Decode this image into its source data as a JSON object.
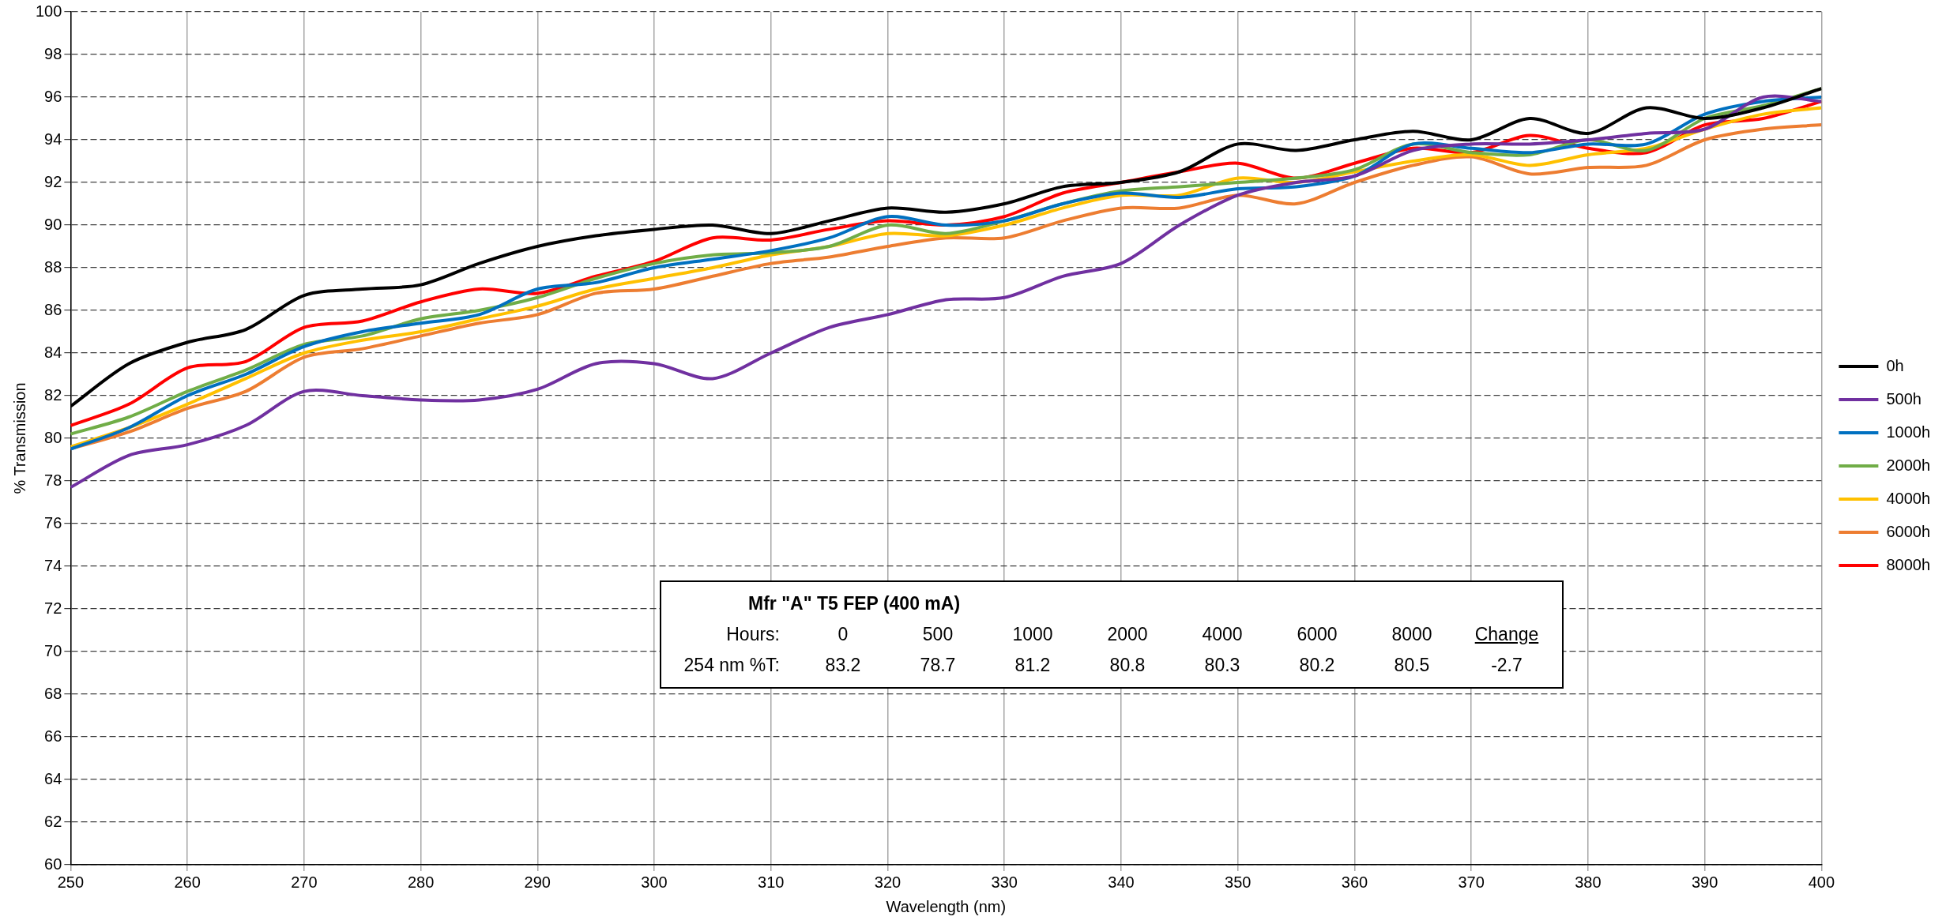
{
  "chart_data": {
    "type": "line",
    "xlabel": "Wavelength (nm)",
    "ylabel": "% Transmission",
    "x": [
      250,
      255,
      260,
      265,
      270,
      275,
      280,
      285,
      290,
      295,
      300,
      305,
      310,
      315,
      320,
      325,
      330,
      335,
      340,
      345,
      350,
      355,
      360,
      365,
      370,
      375,
      380,
      385,
      390,
      395,
      400
    ],
    "xlim": [
      250,
      400
    ],
    "xticks": [
      250,
      260,
      270,
      280,
      290,
      300,
      310,
      320,
      330,
      340,
      350,
      360,
      370,
      380,
      390,
      400
    ],
    "ylim": [
      60,
      100
    ],
    "yticks": [
      60,
      62,
      64,
      66,
      68,
      70,
      72,
      74,
      76,
      78,
      80,
      82,
      84,
      86,
      88,
      90,
      92,
      94,
      96,
      98,
      100
    ],
    "grid": true,
    "legend": "right",
    "marker": "none",
    "line_style": "solid",
    "series": [
      {
        "name": "0h",
        "color": "#000000",
        "values": [
          81.5,
          83.5,
          84.5,
          85.1,
          86.7,
          87.0,
          87.2,
          88.2,
          89.0,
          89.5,
          89.8,
          90.0,
          89.6,
          90.2,
          90.8,
          90.6,
          91.0,
          91.8,
          92.0,
          92.5,
          93.8,
          93.5,
          94.0,
          94.4,
          94.0,
          95.0,
          94.3,
          95.5,
          95.0,
          95.5,
          96.4
        ]
      },
      {
        "name": "500h",
        "color": "#7030a0",
        "values": [
          77.7,
          79.2,
          79.7,
          80.6,
          82.2,
          82.0,
          81.8,
          81.8,
          82.3,
          83.5,
          83.5,
          82.8,
          84.0,
          85.2,
          85.8,
          86.5,
          86.6,
          87.6,
          88.2,
          90.0,
          91.4,
          92.0,
          92.3,
          93.5,
          93.8,
          93.8,
          94.0,
          94.3,
          94.5,
          96.0,
          95.8
        ]
      },
      {
        "name": "1000h",
        "color": "#0070c0",
        "values": [
          79.5,
          80.5,
          82.0,
          83.0,
          84.3,
          85.0,
          85.4,
          85.8,
          87.0,
          87.3,
          88.0,
          88.4,
          88.8,
          89.4,
          90.4,
          90.0,
          90.2,
          91.0,
          91.5,
          91.3,
          91.7,
          91.8,
          92.3,
          93.8,
          93.6,
          93.4,
          93.8,
          93.8,
          95.2,
          95.8,
          96.0
        ]
      },
      {
        "name": "2000h",
        "color": "#70ad47",
        "values": [
          80.2,
          81.0,
          82.2,
          83.2,
          84.4,
          84.8,
          85.6,
          86.0,
          86.6,
          87.5,
          88.2,
          88.6,
          88.7,
          89.0,
          90.0,
          89.6,
          90.2,
          91.0,
          91.6,
          91.8,
          92.0,
          92.2,
          92.6,
          93.8,
          93.4,
          93.3,
          94.0,
          93.5,
          95.0,
          95.6,
          96.4
        ]
      },
      {
        "name": "4000h",
        "color": "#ffc000",
        "values": [
          79.6,
          80.5,
          81.6,
          82.8,
          84.0,
          84.6,
          85.0,
          85.6,
          86.2,
          87.0,
          87.5,
          88.0,
          88.6,
          89.0,
          89.6,
          89.5,
          90.0,
          90.8,
          91.4,
          91.4,
          92.2,
          92.0,
          92.5,
          93.0,
          93.3,
          92.8,
          93.3,
          93.6,
          94.5,
          95.2,
          95.5
        ]
      },
      {
        "name": "6000h",
        "color": "#ed7d31",
        "values": [
          79.5,
          80.3,
          81.4,
          82.2,
          83.8,
          84.2,
          84.8,
          85.4,
          85.8,
          86.8,
          87.0,
          87.6,
          88.2,
          88.5,
          89.0,
          89.4,
          89.4,
          90.2,
          90.8,
          90.8,
          91.4,
          91.0,
          92.0,
          92.8,
          93.2,
          92.4,
          92.7,
          92.8,
          94.0,
          94.5,
          94.7
        ]
      },
      {
        "name": "8000h",
        "color": "#ff0000",
        "values": [
          80.6,
          81.6,
          83.3,
          83.6,
          85.2,
          85.5,
          86.4,
          87.0,
          86.8,
          87.6,
          88.3,
          89.4,
          89.3,
          89.8,
          90.2,
          90.0,
          90.4,
          91.5,
          92.0,
          92.5,
          92.9,
          92.2,
          92.9,
          93.6,
          93.4,
          94.2,
          93.6,
          93.4,
          94.7,
          95.0,
          95.8
        ]
      }
    ],
    "annotations": [
      "Mfr \"A\" T5 FEP (400 mA)",
      "Hours:",
      "0",
      "500",
      "1000",
      "2000",
      "4000",
      "6000",
      "8000",
      "Change",
      "254 nm %T:",
      "83.2",
      "78.7",
      "81.2",
      "80.8",
      "80.3",
      "80.2",
      "80.5",
      "-2.7"
    ]
  }
}
